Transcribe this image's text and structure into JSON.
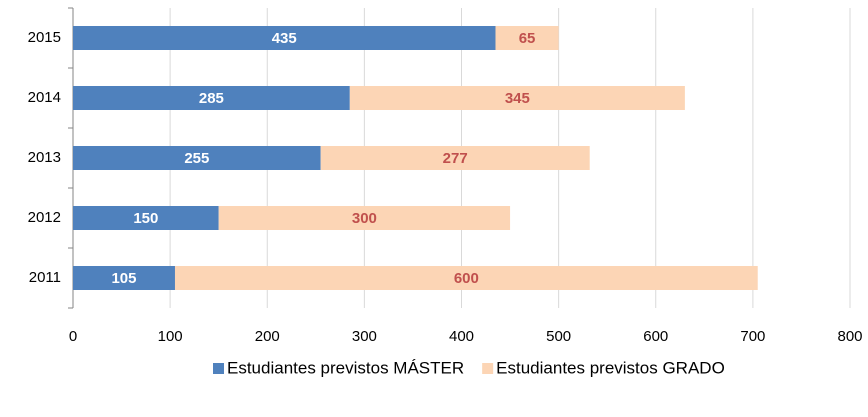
{
  "chart_data": {
    "type": "stacked-barh",
    "categories": [
      "2015",
      "2014",
      "2013",
      "2012",
      "2011"
    ],
    "series": [
      {
        "name": "Estudiantes previstos MÁSTER",
        "color": "#4f81bd",
        "label_color": "#ffffff",
        "values": [
          435,
          285,
          255,
          150,
          105
        ]
      },
      {
        "name": "Estudiantes previstos GRADO",
        "color": "#fcd5b5",
        "label_color": "#c0504d",
        "values": [
          65,
          345,
          277,
          300,
          600
        ]
      }
    ],
    "xlim": [
      0,
      800
    ],
    "xticks": [
      0,
      100,
      200,
      300,
      400,
      500,
      600,
      700,
      800
    ],
    "grid": true,
    "legend": "bottom"
  }
}
